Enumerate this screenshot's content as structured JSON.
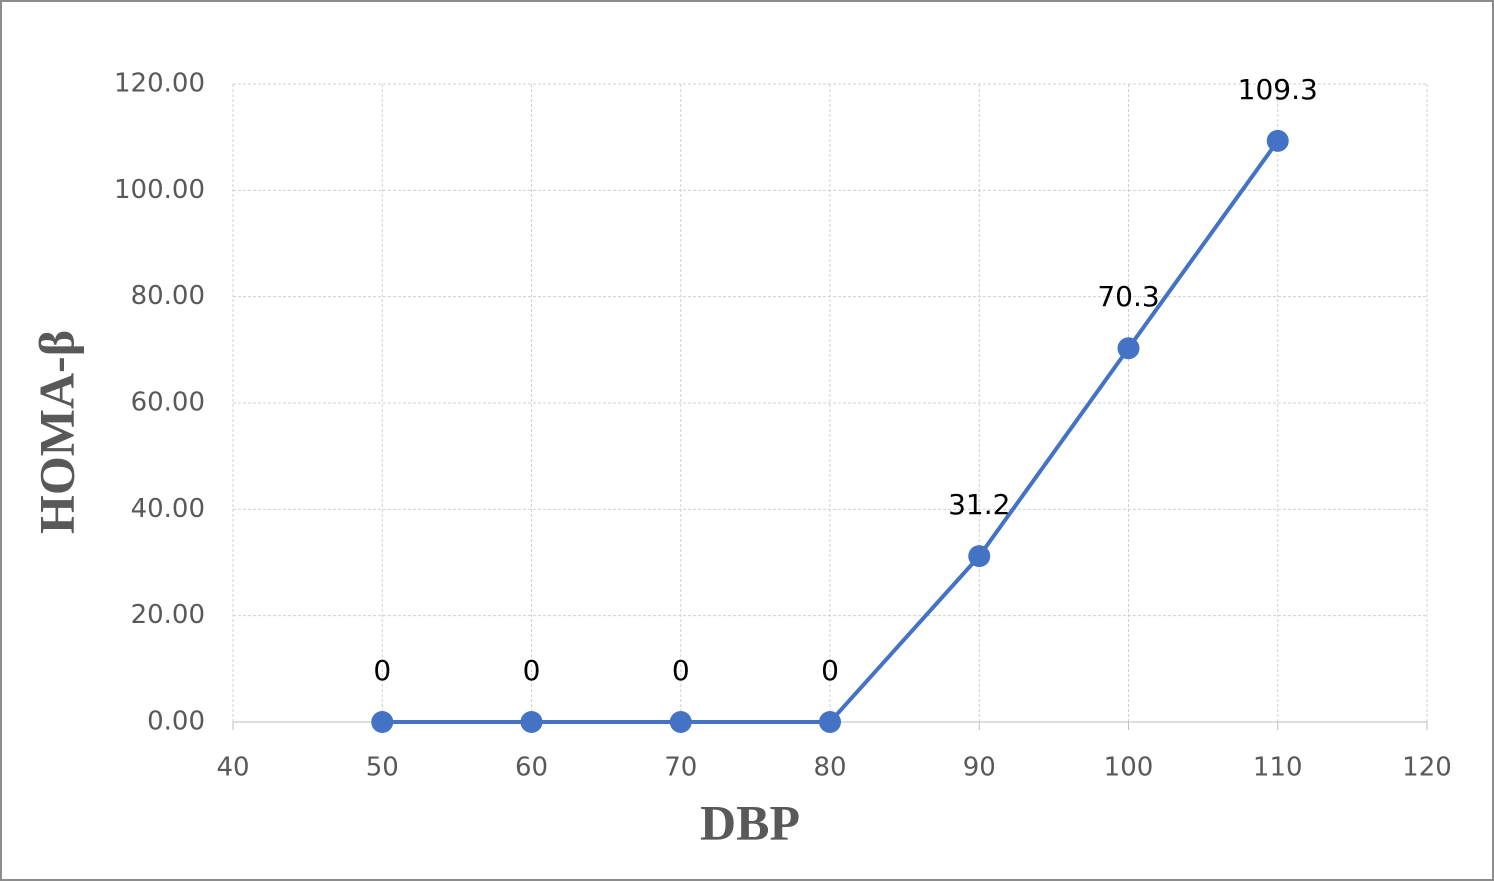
{
  "chart_data": {
    "type": "line",
    "x_label": "DBP",
    "y_label": "HOMA-β",
    "x": [
      50,
      60,
      70,
      80,
      90,
      100,
      110
    ],
    "values": [
      0,
      0,
      0,
      0,
      31.2,
      70.3,
      109.3
    ],
    "color": "#4472c4",
    "xlim": [
      40,
      120
    ],
    "xticks": [
      40,
      50,
      60,
      70,
      80,
      90,
      100,
      110,
      120
    ],
    "ylim": [
      0,
      120
    ],
    "yticks": [
      {
        "value": 0,
        "label": "0.00"
      },
      {
        "value": 20,
        "label": "20.00"
      },
      {
        "value": 40,
        "label": "40.00"
      },
      {
        "value": 60,
        "label": "60.00"
      },
      {
        "value": 80,
        "label": "80.00"
      },
      {
        "value": 100,
        "label": "100.00"
      },
      {
        "value": 120,
        "label": "120.00"
      }
    ],
    "grid": true,
    "data_labels": true
  }
}
